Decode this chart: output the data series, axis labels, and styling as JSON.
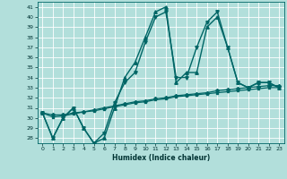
{
  "xlabel": "Humidex (Indice chaleur)",
  "background_color": "#b2dfdb",
  "grid_color": "#ffffff",
  "line_color": "#006666",
  "xlim": [
    -0.5,
    23.5
  ],
  "ylim": [
    27.5,
    41.5
  ],
  "xticks": [
    0,
    1,
    2,
    3,
    4,
    5,
    6,
    7,
    8,
    9,
    10,
    11,
    12,
    13,
    14,
    15,
    16,
    17,
    18,
    19,
    20,
    21,
    22,
    23
  ],
  "yticks": [
    28,
    29,
    30,
    31,
    32,
    33,
    34,
    35,
    36,
    37,
    38,
    39,
    40,
    41
  ],
  "series": [
    {
      "x": [
        0,
        1,
        2,
        3,
        4,
        5,
        6,
        7,
        8,
        9,
        10,
        11,
        12,
        13,
        14,
        15,
        16,
        17,
        18,
        19,
        20,
        21,
        22,
        23
      ],
      "y": [
        30.5,
        28.0,
        30.0,
        31.0,
        29.0,
        27.5,
        28.0,
        31.0,
        34.0,
        35.5,
        38.0,
        40.5,
        41.0,
        33.5,
        34.5,
        34.5,
        39.0,
        40.0,
        37.0,
        33.5,
        33.0,
        33.5,
        33.5,
        33.0
      ],
      "marker": "^",
      "markersize": 2.5,
      "linewidth": 1.0
    },
    {
      "x": [
        0,
        1,
        2,
        3,
        4,
        5,
        6,
        7,
        8,
        9,
        10,
        11,
        12,
        13,
        14,
        15,
        16,
        17,
        18,
        19,
        20,
        21,
        22,
        23
      ],
      "y": [
        30.5,
        28.0,
        30.0,
        31.0,
        29.0,
        27.5,
        28.5,
        31.5,
        33.5,
        34.5,
        37.5,
        40.0,
        40.5,
        34.0,
        34.0,
        37.0,
        39.5,
        40.5,
        37.0,
        33.5,
        33.0,
        33.5,
        33.5,
        33.0
      ],
      "marker": "v",
      "markersize": 2.5,
      "linewidth": 1.0
    },
    {
      "x": [
        0,
        1,
        2,
        3,
        4,
        5,
        6,
        7,
        8,
        9,
        10,
        11,
        12,
        13,
        14,
        15,
        16,
        17,
        18,
        19,
        20,
        21,
        22,
        23
      ],
      "y": [
        30.5,
        30.3,
        30.3,
        30.5,
        30.6,
        30.8,
        31.0,
        31.2,
        31.4,
        31.6,
        31.7,
        31.9,
        32.0,
        32.2,
        32.3,
        32.4,
        32.5,
        32.7,
        32.8,
        32.9,
        33.0,
        33.1,
        33.2,
        33.2
      ],
      "marker": "D",
      "markersize": 2.0,
      "linewidth": 0.9
    },
    {
      "x": [
        0,
        1,
        2,
        3,
        4,
        5,
        6,
        7,
        8,
        9,
        10,
        11,
        12,
        13,
        14,
        15,
        16,
        17,
        18,
        19,
        20,
        21,
        22,
        23
      ],
      "y": [
        30.5,
        30.1,
        30.2,
        30.4,
        30.6,
        30.7,
        30.9,
        31.1,
        31.3,
        31.5,
        31.6,
        31.8,
        31.9,
        32.1,
        32.2,
        32.3,
        32.4,
        32.5,
        32.6,
        32.7,
        32.8,
        32.9,
        33.0,
        33.0
      ],
      "marker": "s",
      "markersize": 2.0,
      "linewidth": 0.9
    }
  ]
}
